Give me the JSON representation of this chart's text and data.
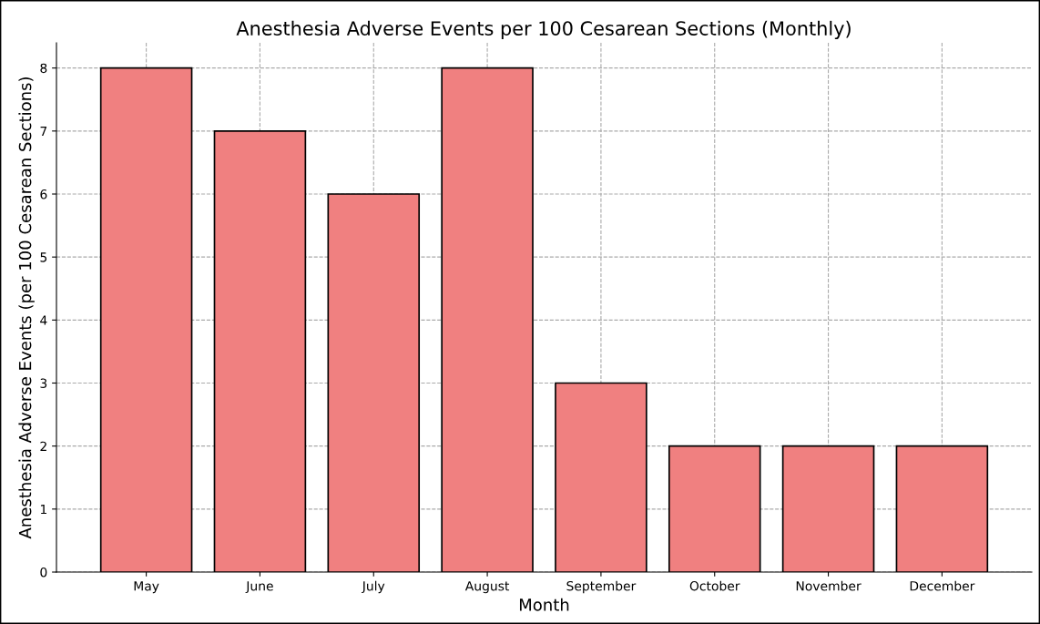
{
  "chart_data": {
    "type": "bar",
    "title": "Anesthesia Adverse Events per 100 Cesarean Sections (Monthly)",
    "xlabel": "Month",
    "ylabel": "Anesthesia Adverse Events (per 100 Cesarean Sections)",
    "categories": [
      "May",
      "June",
      "July",
      "August",
      "September",
      "October",
      "November",
      "December"
    ],
    "values": [
      8,
      7,
      6,
      8,
      3,
      2,
      2,
      2
    ],
    "color": "#f08080",
    "ylim": [
      0,
      8.4
    ],
    "yticks": [
      0,
      1,
      2,
      3,
      4,
      5,
      6,
      7,
      8
    ],
    "grid": true,
    "legend": false
  }
}
